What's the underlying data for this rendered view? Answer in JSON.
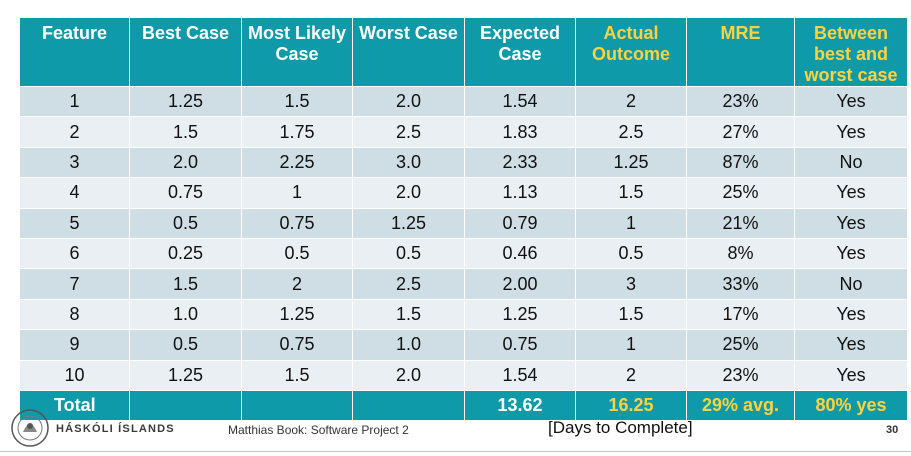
{
  "headers": [
    {
      "text": "Feature",
      "highlight": false
    },
    {
      "text": "Best Case",
      "highlight": false
    },
    {
      "text": "Most Likely Case",
      "highlight": false
    },
    {
      "text": "Worst Case",
      "highlight": false
    },
    {
      "text": "Expected Case",
      "highlight": false
    },
    {
      "text": "Actual Outcome",
      "highlight": true
    },
    {
      "text": "MRE",
      "highlight": true
    },
    {
      "text": "Between best and worst case",
      "highlight": true
    }
  ],
  "rows": [
    [
      "1",
      "1.25",
      "1.5",
      "2.0",
      "1.54",
      "2",
      "23%",
      "Yes"
    ],
    [
      "2",
      "1.5",
      "1.75",
      "2.5",
      "1.83",
      "2.5",
      "27%",
      "Yes"
    ],
    [
      "3",
      "2.0",
      "2.25",
      "3.0",
      "2.33",
      "1.25",
      "87%",
      "No"
    ],
    [
      "4",
      "0.75",
      "1",
      "2.0",
      "1.13",
      "1.5",
      "25%",
      "Yes"
    ],
    [
      "5",
      "0.5",
      "0.75",
      "1.25",
      "0.79",
      "1",
      "21%",
      "Yes"
    ],
    [
      "6",
      "0.25",
      "0.5",
      "0.5",
      "0.46",
      "0.5",
      "8%",
      "Yes"
    ],
    [
      "7",
      "1.5",
      "2",
      "2.5",
      "2.00",
      "3",
      "33%",
      "No"
    ],
    [
      "8",
      "1.0",
      "1.25",
      "1.5",
      "1.25",
      "1.5",
      "17%",
      "Yes"
    ],
    [
      "9",
      "0.5",
      "0.75",
      "1.0",
      "0.75",
      "1",
      "25%",
      "Yes"
    ],
    [
      "10",
      "1.25",
      "1.5",
      "2.0",
      "1.54",
      "2",
      "23%",
      "Yes"
    ]
  ],
  "totals": {
    "label": "Total",
    "expected": "13.62",
    "actual": "16.25",
    "mre": "29% avg.",
    "between": "80% yes"
  },
  "footer": {
    "university": "HÁSKÓLI ÍSLANDS",
    "author": "Matthias Book: Software Project 2",
    "caption": "[Days to Complete]",
    "page": "30"
  },
  "colors": {
    "header_bg": "#0e9aa8",
    "highlight_text": "#ffd23f",
    "row_odd": "#cfdde4",
    "row_even": "#e9eff3"
  }
}
